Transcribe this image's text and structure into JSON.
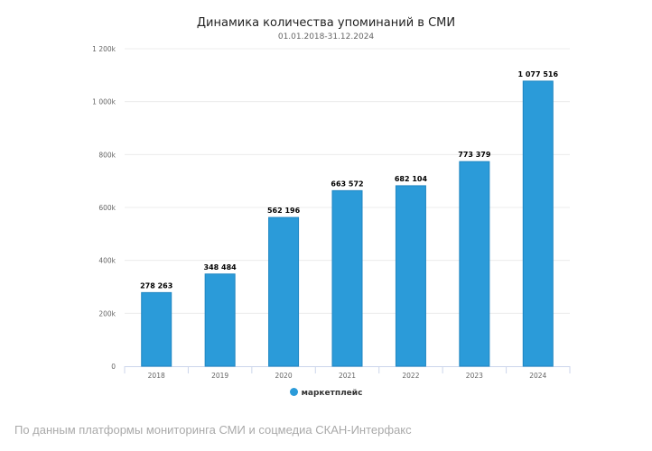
{
  "chart_data": {
    "type": "bar",
    "title": "Динамика количества упоминаний в СМИ",
    "subtitle": "01.01.2018-31.12.2024",
    "categories": [
      "2018",
      "2019",
      "2020",
      "2021",
      "2022",
      "2023",
      "2024"
    ],
    "series": [
      {
        "name": "маркетплейс",
        "values": [
          278263,
          348484,
          562196,
          663572,
          682104,
          773379,
          1077516
        ],
        "color": "#2b9bd9"
      }
    ],
    "data_labels": [
      "278 263",
      "348 484",
      "562 196",
      "663 572",
      "682 104",
      "773 379",
      "1 077 516"
    ],
    "yticks": [
      0,
      200000,
      400000,
      600000,
      800000,
      1000000,
      1200000
    ],
    "ytick_labels": [
      "0",
      "200k",
      "400k",
      "600k",
      "800k",
      "1 000k",
      "1 200k"
    ],
    "ylim": [
      0,
      1200000
    ],
    "grid": true,
    "legend_position": "bottom"
  },
  "footer": {
    "source": "По данным платформы мониторинга СМИ и соцмедиа СКАН-Интерфакс"
  }
}
